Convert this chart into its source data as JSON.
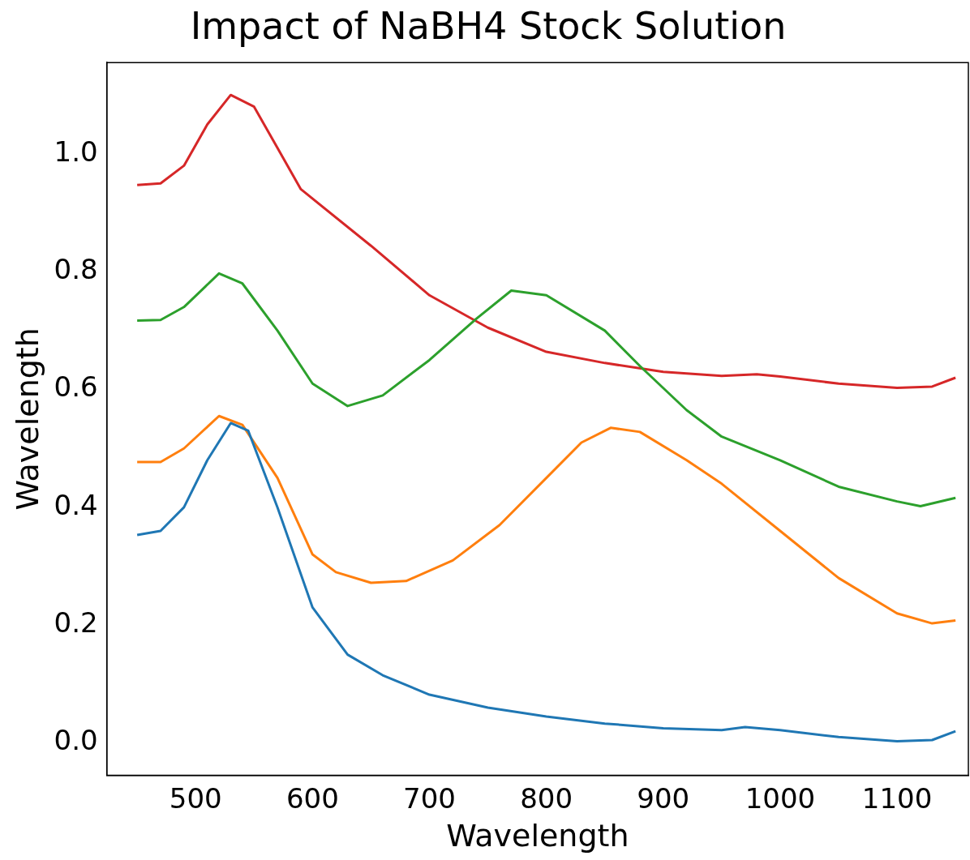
{
  "chart_data": {
    "type": "line",
    "title": "Impact of NaBH4 Stock Solution",
    "xlabel": "Wavelength",
    "ylabel": "Wavelength",
    "xlim": [
      424,
      1161
    ],
    "ylim": [
      -0.055,
      1.155
    ],
    "xticks": [
      500,
      600,
      700,
      800,
      900,
      1000,
      1100
    ],
    "yticks": [
      {
        "value": 0,
        "label": "0.0"
      },
      0.2,
      0.4,
      0.6,
      0.8,
      {
        "value": 1,
        "label": "1.0"
      }
    ],
    "grid": false,
    "legend": false,
    "marker": "none",
    "line_style": "solid",
    "series": [
      {
        "color": "#1f77b4",
        "x": [
          450,
          470,
          490,
          510,
          530,
          545,
          570,
          600,
          630,
          660,
          700,
          750,
          800,
          850,
          900,
          950,
          970,
          1000,
          1050,
          1100,
          1130,
          1150
        ],
        "values": [
          0.353,
          0.36,
          0.4,
          0.48,
          0.543,
          0.53,
          0.4,
          0.23,
          0.15,
          0.115,
          0.082,
          0.06,
          0.045,
          0.033,
          0.025,
          0.022,
          0.027,
          0.022,
          0.01,
          0.003,
          0.005,
          0.02
        ]
      },
      {
        "color": "#ff7f0e",
        "x": [
          450,
          470,
          490,
          520,
          540,
          570,
          600,
          620,
          650,
          680,
          720,
          760,
          800,
          830,
          855,
          880,
          920,
          950,
          1000,
          1050,
          1100,
          1130,
          1150
        ],
        "values": [
          0.477,
          0.477,
          0.5,
          0.555,
          0.54,
          0.45,
          0.32,
          0.29,
          0.272,
          0.275,
          0.31,
          0.37,
          0.45,
          0.51,
          0.535,
          0.528,
          0.48,
          0.44,
          0.36,
          0.28,
          0.22,
          0.203,
          0.208
        ]
      },
      {
        "color": "#2ca02c",
        "x": [
          450,
          470,
          490,
          520,
          540,
          570,
          600,
          630,
          660,
          700,
          740,
          770,
          800,
          850,
          880,
          920,
          950,
          1000,
          1050,
          1100,
          1120,
          1150
        ],
        "values": [
          0.717,
          0.718,
          0.74,
          0.797,
          0.78,
          0.7,
          0.61,
          0.572,
          0.59,
          0.65,
          0.72,
          0.768,
          0.76,
          0.7,
          0.64,
          0.565,
          0.52,
          0.48,
          0.435,
          0.41,
          0.402,
          0.416
        ]
      },
      {
        "color": "#d62728",
        "x": [
          450,
          470,
          490,
          510,
          530,
          550,
          570,
          590,
          650,
          700,
          750,
          800,
          850,
          900,
          950,
          980,
          1000,
          1050,
          1100,
          1130,
          1150
        ],
        "values": [
          0.947,
          0.95,
          0.98,
          1.05,
          1.1,
          1.08,
          1.01,
          0.94,
          0.844,
          0.76,
          0.705,
          0.664,
          0.645,
          0.63,
          0.623,
          0.626,
          0.622,
          0.61,
          0.603,
          0.605,
          0.62
        ]
      }
    ]
  }
}
